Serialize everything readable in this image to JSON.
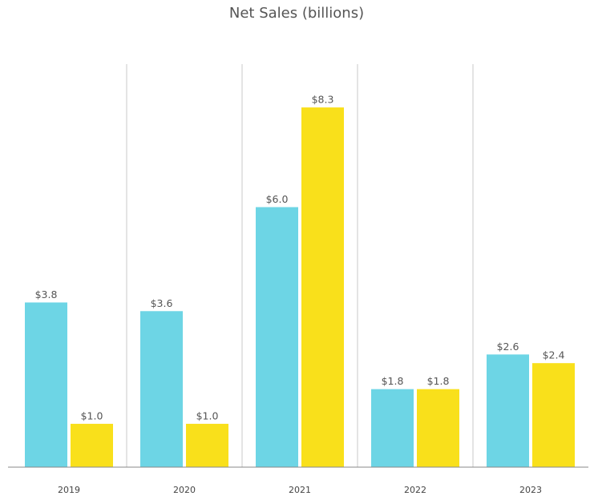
{
  "chart_data": {
    "type": "bar",
    "title": "Net Sales (billions)",
    "categories": [
      "2019",
      "2020",
      "2021",
      "2022",
      "2023"
    ],
    "series": [
      {
        "color": "#6dd5e5",
        "values": [
          3.8,
          3.6,
          6.0,
          1.8,
          2.6
        ],
        "value_labels": [
          "$3.8",
          "$3.6",
          "$6.0",
          "$1.8",
          "$2.6"
        ]
      },
      {
        "color": "#f9e01b",
        "values": [
          1.0,
          1.0,
          8.3,
          1.8,
          2.4
        ],
        "value_labels": [
          "$1.0",
          "$1.0",
          "$8.3",
          "$1.8",
          "$2.4"
        ]
      }
    ],
    "ylim": [
      0,
      9.3
    ],
    "grid": false
  }
}
